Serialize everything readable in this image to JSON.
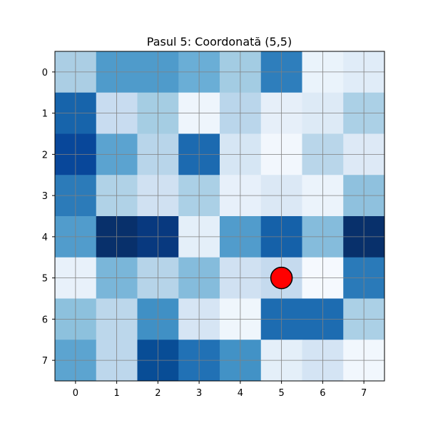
{
  "title": "Pasul 5: Coordonată (5,5)",
  "grid": {
    "rows": 8,
    "cols": 8,
    "x_ticks": [
      "0",
      "1",
      "2",
      "3",
      "4",
      "5",
      "6",
      "7"
    ],
    "y_ticks": [
      "0",
      "1",
      "2",
      "3",
      "4",
      "5",
      "6",
      "7"
    ],
    "gridlines": true,
    "cells": [
      [
        "#abcee4",
        "#4f9bcb",
        "#4f9bcb",
        "#6aaed6",
        "#a3cce3",
        "#2e7ebc",
        "#eaf3fb",
        "#e0ecf8"
      ],
      [
        "#1764ab",
        "#c8dcf0",
        "#a5cde3",
        "#eef5fc",
        "#bad6eb",
        "#e6eff9",
        "#ddeaf6",
        "#abd0e6"
      ],
      [
        "#08479a",
        "#5ba3d0",
        "#b8d5ea",
        "#1c6ab0",
        "#d6e6f4",
        "#f2f7fd",
        "#b9d6ea",
        "#dde9f6"
      ],
      [
        "#2c7bb9",
        "#b0d2e7",
        "#d0e1f2",
        "#abd0e6",
        "#e7f0fa",
        "#dbe8f5",
        "#ebf3fb",
        "#8fc1de"
      ],
      [
        "#519ccc",
        "#08306b",
        "#08397f",
        "#e4eff9",
        "#519ccc",
        "#1561a9",
        "#85bcdc",
        "#08306b"
      ],
      [
        "#e8f1fa",
        "#7ab6d9",
        "#b6d4e9",
        "#85bcdc",
        "#d0e1f2",
        "#c5daee",
        "#f5f9fe",
        "#2a7ab9"
      ],
      [
        "#8dc1dd",
        "#bcd7eb",
        "#4090c5",
        "#d6e5f4",
        "#eff6fc",
        "#1d6cb1",
        "#1d6cb1",
        "#abd0e6"
      ],
      [
        "#5ca4d0",
        "#bdd7ec",
        "#084d96",
        "#2171b5",
        "#4292c6",
        "#e4eff9",
        "#d4e4f4",
        "#f1f7fd"
      ]
    ]
  },
  "marker": {
    "row": 5,
    "col": 5,
    "color": "#ff0000",
    "edge": "#000000"
  }
}
